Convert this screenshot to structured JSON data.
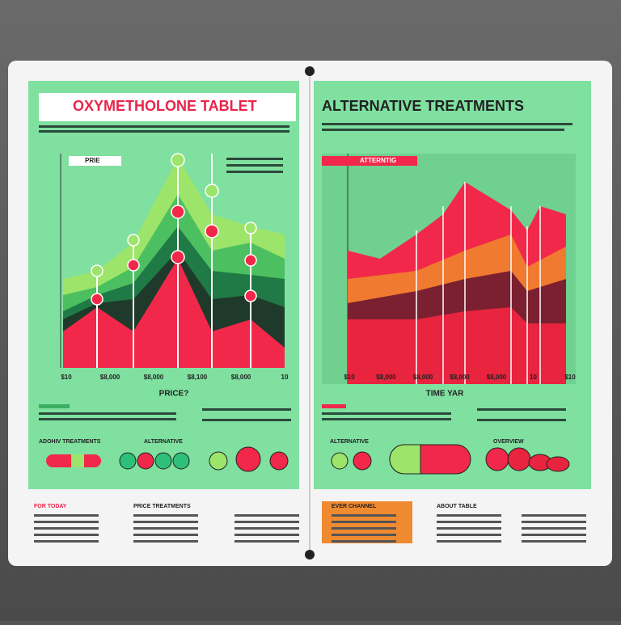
{
  "left": {
    "title": "OXYMETHOLONE TABLET",
    "legend_title": "PRIE",
    "x_labels": [
      "$10",
      "$8,000",
      "$8,000",
      "$8,100",
      "$8,000",
      "10"
    ],
    "x_title": "PRICE?",
    "pill_labels": [
      "ADOHIV TREATMENTS",
      "ALTERNATIVE"
    ]
  },
  "right": {
    "title": "ALTERNATIVE TREATMENTS",
    "legend_title": "ATTERNTIG",
    "x_labels": [
      "$10",
      "$8,000",
      "$8,000",
      "$8,000",
      "$8,000",
      "10",
      "$10"
    ],
    "x_title": "TIME YAR",
    "pill_labels": [
      "ALTERNATIVE",
      "OVERVIEW"
    ]
  },
  "footer": [
    "FOR TODAY",
    "PRICE TREATMENTS",
    "EVER CHANNEL",
    "ABOUT TABLE"
  ]
}
